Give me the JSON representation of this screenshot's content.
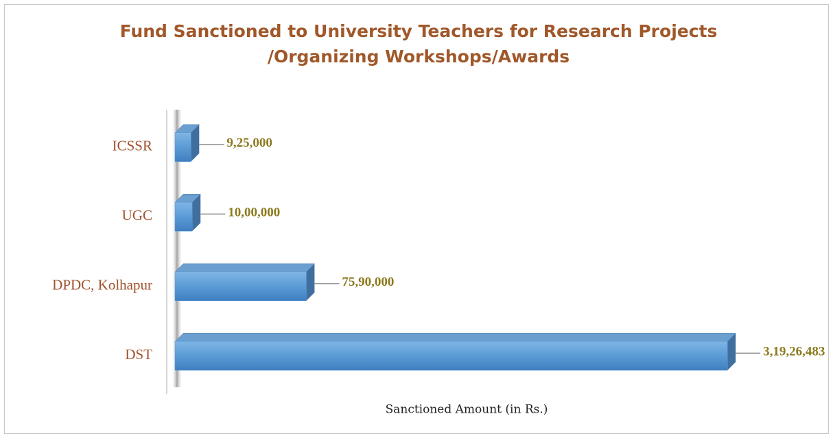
{
  "chart_data": {
    "type": "bar3d_horizontal",
    "title": [
      "Fund Sanctioned to University Teachers for Research Projects",
      "/Organizing Workshops/Awards"
    ],
    "xlabel": "Sanctioned Amount (in Rs.)",
    "categories": [
      "ICSSR",
      "UGC",
      "DPDC, Kolhapur",
      "DST"
    ],
    "values": [
      925000,
      1000000,
      7590000,
      31926483
    ],
    "value_labels": [
      "9,25,000",
      "10,00,000",
      "75,90,000",
      "3,19,26,483"
    ],
    "xlim": [
      0,
      32000000
    ],
    "color": "#5b9bd5"
  }
}
